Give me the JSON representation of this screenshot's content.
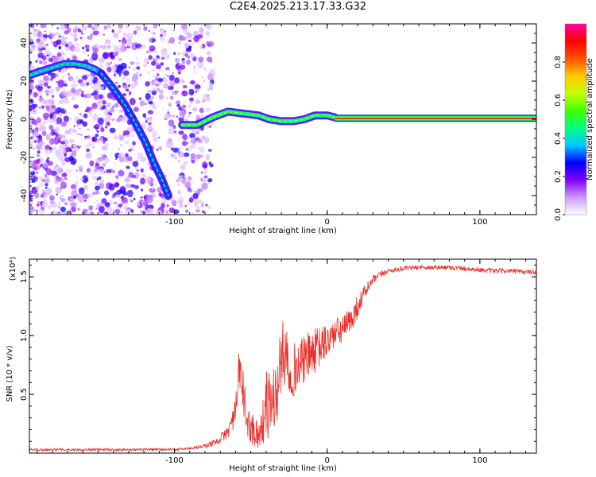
{
  "title": "C2E4.2025.213.17.33.G32",
  "chart_data": [
    {
      "type": "heatmap",
      "name": "spectrogram",
      "xlabel": "Height of straight line (km)",
      "ylabel": "Frequency (Hz)",
      "xlim": [
        -195,
        137
      ],
      "ylim": [
        -50,
        50
      ],
      "xticks": [
        -100,
        0,
        100
      ],
      "xtick_labels": [
        "-100",
        "0",
        "100"
      ],
      "yticks": [
        -40,
        -20,
        0,
        20,
        40
      ],
      "ytick_labels": [
        "-40",
        "-20",
        "0",
        "20",
        "40"
      ],
      "colorbar": {
        "label": "Normalized spectral amplitude",
        "range": [
          0,
          1
        ],
        "ticks": [
          0,
          0.2,
          0.4,
          0.6,
          0.8
        ],
        "tick_labels": [
          "0.0",
          "0.2",
          "0.4",
          "0.6",
          "0.8"
        ],
        "colors": [
          "#ffffff",
          "#cc99ff",
          "#8000ff",
          "#0000ff",
          "#00c8ff",
          "#00ff80",
          "#40ff00",
          "#c8ff00",
          "#ffc800",
          "#ff5000",
          "#ff0000",
          "#ff00a0"
        ]
      },
      "tracks": [
        {
          "points": [
            [
              -195,
              23
            ],
            [
              -188,
              25
            ],
            [
              -180,
              27
            ],
            [
              -172,
              29
            ],
            [
              -165,
              29
            ],
            [
              -158,
              28
            ],
            [
              -152,
              26
            ],
            [
              -148,
              24
            ]
          ],
          "amplitude": 0.35
        },
        {
          "points": [
            [
              -148,
              24
            ],
            [
              -140,
              16
            ],
            [
              -132,
              7
            ],
            [
              -125,
              -3
            ],
            [
              -119,
              -12
            ],
            [
              -114,
              -22
            ],
            [
              -108,
              -32
            ],
            [
              -104,
              -40
            ]
          ],
          "amplitude": 0.3
        },
        {
          "points": [
            [
              -95,
              -3
            ],
            [
              -85,
              -3
            ],
            [
              -75,
              1
            ],
            [
              -65,
              4
            ],
            [
              -55,
              3
            ],
            [
              -45,
              2
            ],
            [
              -38,
              0
            ],
            [
              -30,
              -1
            ],
            [
              -22,
              -1
            ],
            [
              -15,
              0
            ],
            [
              -8,
              2
            ],
            [
              0,
              2
            ],
            [
              5,
              1
            ]
          ],
          "amplitude": 0.45
        },
        {
          "points": [
            [
              5,
              0.5
            ],
            [
              137,
              0.5
            ]
          ],
          "amplitude": 0.9
        }
      ]
    },
    {
      "type": "line",
      "name": "snr",
      "xlabel": "Height of straight line (km)",
      "ylabel": "SNR (10 * v/v)",
      "yscale_label": "(x10⁴)",
      "xlim": [
        -195,
        137
      ],
      "ylim": [
        0,
        1.65
      ],
      "xticks": [
        -100,
        0,
        100
      ],
      "xtick_labels": [
        "-100",
        "0",
        "100"
      ],
      "yticks": [
        0.5,
        1.0,
        1.5
      ],
      "ytick_labels": [
        "0.5",
        "1.0",
        "1.5"
      ],
      "color": "#e8302a",
      "x": [
        -195,
        -170,
        -145,
        -120,
        -100,
        -90,
        -80,
        -72,
        -65,
        -60,
        -57,
        -55,
        -52,
        -48,
        -44,
        -40,
        -36,
        -33,
        -30,
        -27,
        -25,
        -20,
        -15,
        -10,
        -5,
        0,
        5,
        10,
        15,
        20,
        25,
        30,
        35,
        40,
        50,
        60,
        70,
        80,
        90,
        100,
        110,
        120,
        130,
        137
      ],
      "values": [
        0.03,
        0.03,
        0.03,
        0.03,
        0.03,
        0.04,
        0.06,
        0.1,
        0.18,
        0.35,
        0.75,
        0.5,
        0.25,
        0.2,
        0.15,
        0.4,
        0.45,
        0.5,
        0.8,
        0.9,
        0.7,
        0.72,
        0.8,
        0.85,
        0.9,
        0.95,
        1.02,
        1.05,
        1.12,
        1.25,
        1.38,
        1.47,
        1.52,
        1.55,
        1.57,
        1.58,
        1.58,
        1.58,
        1.57,
        1.56,
        1.55,
        1.55,
        1.54,
        1.54
      ],
      "noise": [
        0.01,
        0.01,
        0.01,
        0.01,
        0.01,
        0.01,
        0.02,
        0.03,
        0.06,
        0.12,
        0.25,
        0.22,
        0.12,
        0.15,
        0.12,
        0.3,
        0.3,
        0.3,
        0.3,
        0.3,
        0.25,
        0.22,
        0.2,
        0.2,
        0.18,
        0.15,
        0.13,
        0.12,
        0.12,
        0.1,
        0.06,
        0.04,
        0.03,
        0.02,
        0.02,
        0.02,
        0.02,
        0.02,
        0.02,
        0.02,
        0.02,
        0.02,
        0.02,
        0.02
      ]
    }
  ]
}
